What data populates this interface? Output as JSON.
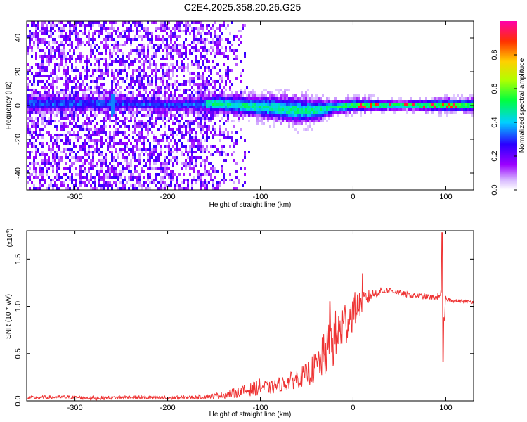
{
  "title": "C2E4.2025.358.20.26.G25",
  "chart_data": [
    {
      "type": "heatmap",
      "xlabel": "Height of straight line (km)",
      "ylabel": "Frequency (Hz)",
      "xlim": [
        -352,
        130
      ],
      "ylim": [
        -50,
        50
      ],
      "xticks": [
        -300,
        -200,
        -100,
        0,
        100
      ],
      "xtick_labels": [
        "-300",
        "-200",
        "-100",
        "0",
        "100"
      ],
      "yticks": [
        -40,
        -20,
        0,
        20,
        40
      ],
      "ytick_labels": [
        "-40",
        "-20",
        "0",
        "20",
        "40"
      ],
      "colorbar": {
        "label": "Normalized spectral amplitude",
        "range": [
          0,
          1
        ],
        "ticks": [
          0.0,
          0.2,
          0.4,
          0.6,
          0.8
        ],
        "tick_labels": [
          "0.0",
          "0.2",
          "0.4",
          "0.6",
          "0.8"
        ],
        "colormap": [
          "#ffffff",
          "#9b00ff",
          "#2a00ff",
          "#00d0ff",
          "#00ff40",
          "#b0ff00",
          "#ffd000",
          "#ff3000",
          "#ff00aa"
        ]
      },
      "ridge": {
        "description_points_x": [
          -352,
          -300,
          -250,
          -200,
          -150,
          -100,
          -60,
          -40,
          -20,
          0,
          50,
          100,
          130
        ],
        "center_freq": [
          2,
          2,
          2,
          1,
          2,
          0,
          -2,
          -2,
          0,
          1,
          1,
          1,
          1
        ],
        "half_width": [
          4,
          4,
          3,
          3,
          4,
          5,
          6,
          5,
          3,
          3,
          2,
          3,
          3
        ]
      }
    },
    {
      "type": "line",
      "xlabel": "Height of straight line (km)",
      "ylabel": "SNR (10 * v/v)",
      "y_multiplier_label": "(x10",
      "y_multiplier_exp": "4",
      "xlim": [
        -352,
        130
      ],
      "ylim": [
        0,
        1.8
      ],
      "xticks": [
        -300,
        -200,
        -100,
        0,
        100
      ],
      "xtick_labels": [
        "-300",
        "-200",
        "-100",
        "0",
        "100"
      ],
      "yticks": [
        0.0,
        0.5,
        1.0,
        1.5
      ],
      "ytick_labels": [
        "0.0",
        "0.5",
        "1.0",
        "1.5"
      ],
      "color": "#ee3333",
      "series": [
        {
          "name": "SNR",
          "x": [
            -352,
            -320,
            -280,
            -240,
            -200,
            -170,
            -150,
            -130,
            -110,
            -100,
            -90,
            -70,
            -50,
            -40,
            -30,
            -20,
            -10,
            0,
            10,
            20,
            30,
            40,
            50,
            60,
            70,
            80,
            90,
            95,
            97,
            100,
            110,
            120,
            130
          ],
          "values": [
            0.03,
            0.04,
            0.03,
            0.04,
            0.03,
            0.04,
            0.05,
            0.08,
            0.12,
            0.15,
            0.14,
            0.2,
            0.28,
            0.35,
            0.5,
            0.65,
            0.8,
            0.95,
            1.05,
            1.12,
            1.16,
            1.17,
            1.14,
            1.12,
            1.11,
            1.1,
            1.09,
            1.15,
            0.65,
            1.08,
            1.06,
            1.05,
            1.05
          ],
          "noise_amp": [
            0.02,
            0.02,
            0.02,
            0.02,
            0.02,
            0.02,
            0.03,
            0.05,
            0.07,
            0.09,
            0.07,
            0.09,
            0.12,
            0.18,
            0.25,
            0.3,
            0.28,
            0.2,
            0.12,
            0.06,
            0.04,
            0.03,
            0.03,
            0.03,
            0.03,
            0.03,
            0.03,
            0.04,
            0.2,
            0.03,
            0.02,
            0.02,
            0.02
          ],
          "peaks": [
            {
              "x": -25,
              "y": 1.05
            },
            {
              "x": 10,
              "y": 1.35
            },
            {
              "x": 96,
              "y": 1.78
            },
            {
              "x": 97,
              "y": 0.42
            }
          ]
        }
      ]
    }
  ]
}
